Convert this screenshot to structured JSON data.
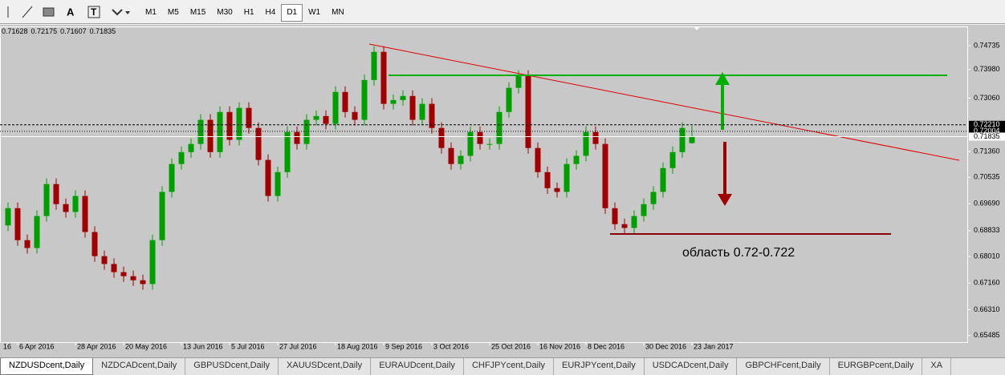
{
  "toolbar": {
    "tools": [
      "A",
      "T"
    ],
    "timeframes": [
      "M1",
      "M5",
      "M15",
      "M30",
      "H1",
      "H4",
      "D1",
      "W1",
      "MN"
    ],
    "active_timeframe": 6
  },
  "chart_data": {
    "type": "candlestick",
    "categories": [
      "16",
      "6 Apr 2016",
      null,
      null,
      null,
      null,
      null,
      "28 Apr 2016",
      null,
      null,
      null,
      null,
      "20 May 2016",
      null,
      null,
      null,
      null,
      null,
      "13 Jun 2016",
      null,
      null,
      null,
      null,
      "5 Jul 2016",
      null,
      null,
      null,
      null,
      "27 Jul 2016",
      null,
      null,
      null,
      null,
      null,
      "18 Aug 2016",
      null,
      null,
      null,
      null,
      "9 Sep 2016",
      null,
      null,
      null,
      null,
      "3 Oct 2016",
      null,
      null,
      null,
      null,
      null,
      "25 Oct 2016",
      null,
      null,
      null,
      null,
      "16 Nov 2016",
      null,
      null,
      null,
      null,
      "8 Dec 2016",
      null,
      null,
      null,
      null,
      null,
      "30 Dec 2016",
      null,
      null,
      null,
      null,
      "23 Jan 2017"
    ],
    "open": [
      0.69,
      0.6955,
      0.6853,
      0.6828,
      0.693,
      0.7032,
      0.6968,
      0.6943,
      0.6994,
      0.6879,
      0.6802,
      0.6777,
      0.6751,
      0.6738,
      0.6725,
      0.6713,
      0.6853,
      0.7007,
      0.7096,
      0.7134,
      0.716,
      0.7237,
      0.7134,
      0.7262,
      0.7173,
      0.7275,
      0.7211,
      0.7109,
      0.6994,
      0.707,
      0.7198,
      0.716,
      0.7237,
      0.7249,
      0.7224,
      0.7326,
      0.7262,
      0.7237,
      0.7364,
      0.7454,
      0.7288,
      0.73,
      0.7313,
      0.7237,
      0.7288,
      0.7211,
      0.7147,
      0.7096,
      0.7122,
      0.7198,
      0.716,
      0.716,
      0.7262,
      0.7339,
      0.7377,
      0.7147,
      0.707,
      0.7019,
      0.7007,
      0.7096,
      0.7122,
      0.7198,
      0.716,
      0.6955,
      0.6904,
      0.6892,
      0.693,
      0.6968,
      0.7007,
      0.7083,
      0.7134,
      0.71628
    ],
    "high": [
      0.6973,
      0.6973,
      0.6871,
      0.6948,
      0.705,
      0.705,
      0.6986,
      0.7012,
      0.7012,
      0.6897,
      0.682,
      0.6795,
      0.6769,
      0.6756,
      0.6743,
      0.6871,
      0.7025,
      0.7114,
      0.7152,
      0.7178,
      0.7255,
      0.7255,
      0.728,
      0.728,
      0.7293,
      0.7293,
      0.7229,
      0.7127,
      0.7088,
      0.7216,
      0.7216,
      0.7255,
      0.7267,
      0.7267,
      0.7344,
      0.7344,
      0.728,
      0.7382,
      0.7472,
      0.7472,
      0.7318,
      0.7331,
      0.7331,
      0.7306,
      0.7306,
      0.7229,
      0.7165,
      0.714,
      0.7216,
      0.7216,
      0.7178,
      0.728,
      0.7357,
      0.7395,
      0.7395,
      0.7165,
      0.7088,
      0.7037,
      0.7114,
      0.714,
      0.7216,
      0.7216,
      0.7178,
      0.6973,
      0.6922,
      0.6948,
      0.6986,
      0.7025,
      0.7101,
      0.7152,
      0.7229,
      0.72175
    ],
    "low": [
      0.6882,
      0.6835,
      0.681,
      0.681,
      0.6912,
      0.695,
      0.6925,
      0.6925,
      0.6861,
      0.6784,
      0.6759,
      0.6733,
      0.672,
      0.6707,
      0.6695,
      0.6695,
      0.6835,
      0.6989,
      0.7078,
      0.7116,
      0.7142,
      0.7116,
      0.7116,
      0.7155,
      0.7155,
      0.7193,
      0.7091,
      0.6976,
      0.6976,
      0.7052,
      0.7142,
      0.7142,
      0.7219,
      0.7206,
      0.7206,
      0.7244,
      0.7219,
      0.7219,
      0.7346,
      0.727,
      0.727,
      0.7282,
      0.7219,
      0.7219,
      0.7193,
      0.7129,
      0.7078,
      0.7078,
      0.7104,
      0.7142,
      0.7142,
      0.7142,
      0.7244,
      0.7321,
      0.7129,
      0.7052,
      0.7001,
      0.6989,
      0.6989,
      0.7078,
      0.7104,
      0.7142,
      0.6937,
      0.6886,
      0.6874,
      0.6874,
      0.6912,
      0.695,
      0.6989,
      0.7065,
      0.7116,
      0.71607
    ],
    "close": [
      0.6955,
      0.6853,
      0.6828,
      0.693,
      0.7032,
      0.6968,
      0.6943,
      0.6994,
      0.6879,
      0.6802,
      0.6777,
      0.6751,
      0.6738,
      0.6725,
      0.6713,
      0.6853,
      0.7007,
      0.7096,
      0.7134,
      0.716,
      0.7237,
      0.7134,
      0.7262,
      0.7173,
      0.7275,
      0.7211,
      0.7109,
      0.6994,
      0.707,
      0.7198,
      0.716,
      0.7237,
      0.7249,
      0.7224,
      0.7326,
      0.7262,
      0.7237,
      0.7364,
      0.7454,
      0.7288,
      0.73,
      0.7313,
      0.7237,
      0.7288,
      0.7211,
      0.7147,
      0.7096,
      0.7122,
      0.7198,
      0.716,
      0.716,
      0.7262,
      0.7339,
      0.7377,
      0.7147,
      0.707,
      0.7019,
      0.7007,
      0.7096,
      0.7122,
      0.7198,
      0.716,
      0.6955,
      0.6904,
      0.6892,
      0.693,
      0.6968,
      0.7007,
      0.7083,
      0.7134,
      0.7211,
      0.71835
    ],
    "up_color": "#00a000",
    "down_color": "#a00000",
    "ylim": [
      0.6525,
      0.7535
    ],
    "yticks": [
      0.74735,
      {
        "value": 0.7398,
        "label": "0.73980"
      },
      {
        "value": 0.7306,
        "label": "0.73060"
      },
      {
        "value": 0.7136,
        "label": "0.71360"
      },
      0.70535,
      {
        "value": 0.6969,
        "label": "0.69690"
      },
      0.68833,
      {
        "value": 0.6801,
        "label": "0.68010"
      },
      {
        "value": 0.6716,
        "label": "0.67160"
      },
      {
        "value": 0.6631,
        "label": "0.66310"
      },
      0.65485
    ],
    "price_labels": [
      {
        "value": 0.7221,
        "label": "0.72210"
      },
      0.72004,
      0.71835
    ],
    "price_line_styles": [
      "dashed",
      "dotted",
      "solid"
    ],
    "annotation": "область 0.72-0.722"
  },
  "tabs": [
    "NZDUSDcent,Daily",
    "NZDCADcent,Daily",
    "GBPUSDcent,Daily",
    "XAUUSDcent,Daily",
    "EURAUDcent,Daily",
    "CHFJPYcent,Daily",
    "EURJPYcent,Daily",
    "USDCADcent,Daily",
    "GBPCHFcent,Daily",
    "EURGBPcent,Daily",
    "XA"
  ],
  "active_tab": 0
}
